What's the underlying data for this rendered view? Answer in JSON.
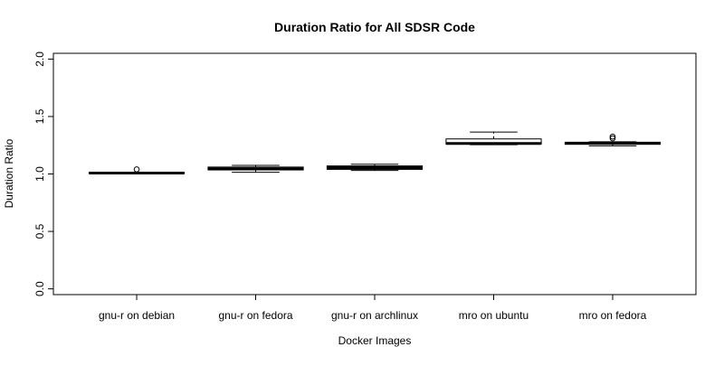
{
  "chart_data": {
    "type": "box",
    "title": "Duration Ratio for All SDSR Code",
    "xlabel": "Docker Images",
    "ylabel": "Duration Ratio",
    "ylim": [
      -0.05,
      2.05
    ],
    "y_ticks": [
      "0.0",
      "0.5",
      "1.0",
      "1.5",
      "2.0"
    ],
    "y_tick_values": [
      0.0,
      0.5,
      1.0,
      1.5,
      2.0
    ],
    "grid": false,
    "categories": [
      "gnu-r on debian",
      "gnu-r on fedora",
      "gnu-r on archlinux",
      "mro on ubuntu",
      "mro on fedora"
    ],
    "boxes": [
      {
        "whisker_low": 1.0,
        "q1": 1.005,
        "median": 1.008,
        "q3": 1.012,
        "whisker_high": 1.015,
        "outliers": [
          1.04
        ]
      },
      {
        "whisker_low": 1.015,
        "q1": 1.035,
        "median": 1.045,
        "q3": 1.06,
        "whisker_high": 1.075,
        "outliers": []
      },
      {
        "whisker_low": 1.03,
        "q1": 1.04,
        "median": 1.055,
        "q3": 1.07,
        "whisker_high": 1.085,
        "outliers": []
      },
      {
        "whisker_low": 1.255,
        "q1": 1.26,
        "median": 1.265,
        "q3": 1.305,
        "whisker_high": 1.365,
        "outliers": []
      },
      {
        "whisker_low": 1.245,
        "q1": 1.258,
        "median": 1.268,
        "q3": 1.275,
        "whisker_high": 1.28,
        "outliers": [
          1.31,
          1.325
        ]
      }
    ]
  }
}
